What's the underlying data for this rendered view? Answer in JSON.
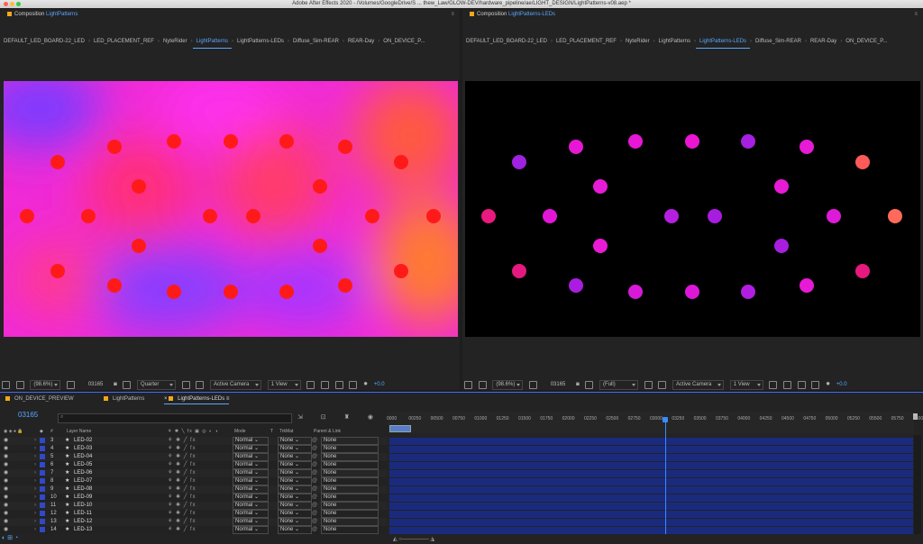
{
  "window_title": "Adobe After Effects 2020 - /Volumes/GoogleDrive/S ... thew_Law/GLOW-DEV/hardware_pipeline/ae/LIGHT_DESIGN/LightPatterns-v08.aep *",
  "left_panel": {
    "prefix": "Composition",
    "comp_name": "LightPatterns",
    "crumbs": [
      "DEFAULT_LED_BOARD-22_LED",
      "LED_PLACEMENT_REF",
      "NyteRider",
      "LightPatterns",
      "LightPatterns-LEDs",
      "Diffuse_Sim-REAR",
      "REAR-Day",
      "ON_DEVICE_P..."
    ],
    "selected_crumb": 3,
    "viewer_bar": {
      "zoom": "(98.6%)",
      "timecode": "03165",
      "resolution": "Quarter",
      "camera": "Active Camera",
      "views": "1 View",
      "exposure": "+0.0"
    }
  },
  "right_panel": {
    "prefix": "Composition",
    "comp_name": "LightPatterns-LEDs",
    "crumbs": [
      "DEFAULT_LED_BOARD-22_LED",
      "LED_PLACEMENT_REF",
      "NyteRider",
      "LightPatterns",
      "LightPatterns-LEDs",
      "Diffuse_Sim-REAR",
      "REAR-Day",
      "ON_DEVICE_P..."
    ],
    "selected_crumb": 4,
    "viewer_bar": {
      "zoom": "(98.6%)",
      "timecode": "03165",
      "resolution": "(Full)",
      "camera": "Active Camera",
      "views": "1 View",
      "exposure": "+0.0"
    }
  },
  "led_colors": {
    "left": "#ff1a1a",
    "right": [
      "#9e22e0",
      "#e817d6",
      "#e817d6",
      "#ec16d2",
      "#a520e0",
      "#e71ad5",
      "#ff5a5a",
      "#e61bd6",
      "#e61bd6",
      "#e8197f",
      "#e216d6",
      "#b41fe0",
      "#a81ce0",
      "#dc1ad8",
      "#ff6a5a",
      "#ea1ad6",
      "#a81de0",
      "#e4197f",
      "#aa1de0",
      "#d81ad8",
      "#dd17d8",
      "#b21ee0",
      "#e71ad5",
      "#e6197f"
    ]
  },
  "timeline": {
    "tabs": [
      "ON_DEVICE_PREVIEW",
      "LightPatterns",
      "LightPatterns-LEDs"
    ],
    "current_time": "03165",
    "search_placeholder": "",
    "columns": {
      "layer_name": "Layer Name",
      "mode": "Mode",
      "trkmat": "TrkMat",
      "parent": "Parent & Link"
    },
    "layers": [
      {
        "num": "3",
        "name": "LED-02",
        "mode": "Normal",
        "trkmat": "None",
        "parent": "None"
      },
      {
        "num": "4",
        "name": "LED-03",
        "mode": "Normal",
        "trkmat": "None",
        "parent": "None"
      },
      {
        "num": "5",
        "name": "LED-04",
        "mode": "Normal",
        "trkmat": "None",
        "parent": "None"
      },
      {
        "num": "6",
        "name": "LED-05",
        "mode": "Normal",
        "trkmat": "None",
        "parent": "None"
      },
      {
        "num": "7",
        "name": "LED-06",
        "mode": "Normal",
        "trkmat": "None",
        "parent": "None"
      },
      {
        "num": "8",
        "name": "LED-07",
        "mode": "Normal",
        "trkmat": "None",
        "parent": "None"
      },
      {
        "num": "9",
        "name": "LED-08",
        "mode": "Normal",
        "trkmat": "None",
        "parent": "None"
      },
      {
        "num": "10",
        "name": "LED-09",
        "mode": "Normal",
        "trkmat": "None",
        "parent": "None"
      },
      {
        "num": "11",
        "name": "LED-10",
        "mode": "Normal",
        "trkmat": "None",
        "parent": "None"
      },
      {
        "num": "12",
        "name": "LED-11",
        "mode": "Normal",
        "trkmat": "None",
        "parent": "None"
      },
      {
        "num": "13",
        "name": "LED-12",
        "mode": "Normal",
        "trkmat": "None",
        "parent": "None"
      },
      {
        "num": "14",
        "name": "LED-13",
        "mode": "Normal",
        "trkmat": "None",
        "parent": "None"
      }
    ],
    "ruler_ticks": [
      "0000",
      "00250",
      "00500",
      "00750",
      "01000",
      "01250",
      "01500",
      "01750",
      "02000",
      "02250",
      "02500",
      "02750",
      "03000",
      "03250",
      "03500",
      "03750",
      "04000",
      "04250",
      "04500",
      "04750",
      "05000",
      "05250",
      "05500",
      "05750",
      "0600"
    ],
    "playhead_fraction": 0.5275
  }
}
